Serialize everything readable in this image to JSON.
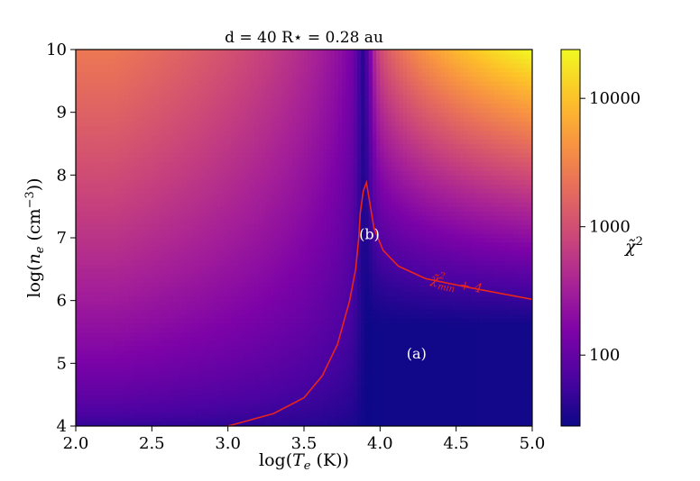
{
  "chart_data": {
    "type": "heatmap",
    "title": "d = 40 R⋆ = 0.28 au",
    "xlabel": "log(T_e (K))",
    "ylabel": "log(n_e (cm⁻³))",
    "xlim": [
      2.0,
      5.0
    ],
    "ylim": [
      4,
      10
    ],
    "x_ticks": [
      "2.0",
      "2.5",
      "3.0",
      "3.5",
      "4.0",
      "4.5",
      "5.0"
    ],
    "y_ticks": [
      "4",
      "5",
      "6",
      "7",
      "8",
      "9",
      "10"
    ],
    "colormap": "plasma",
    "colorbar": {
      "label": "χ̃²",
      "scale": "log",
      "range": [
        28,
        24000
      ],
      "tick_labels": [
        "100",
        "1000",
        "10000"
      ],
      "tick_values": [
        100,
        1000,
        10000
      ]
    },
    "corner_values": {
      "top_left": 2500,
      "top_right": 24000,
      "bottom_left": 45,
      "bottom_right": 30,
      "minimum_valley_x": 3.9
    },
    "contour": {
      "label": "χ̃²_min + 4",
      "color": "#e8251a",
      "points": [
        [
          3.0,
          4.0
        ],
        [
          3.3,
          4.2
        ],
        [
          3.5,
          4.45
        ],
        [
          3.62,
          4.8
        ],
        [
          3.72,
          5.3
        ],
        [
          3.8,
          6.0
        ],
        [
          3.84,
          6.5
        ],
        [
          3.86,
          7.0
        ],
        [
          3.87,
          7.4
        ],
        [
          3.89,
          7.75
        ],
        [
          3.91,
          7.88
        ],
        [
          3.93,
          7.6
        ],
        [
          3.96,
          7.15
        ],
        [
          4.02,
          6.8
        ],
        [
          4.12,
          6.55
        ],
        [
          4.3,
          6.35
        ],
        [
          4.6,
          6.2
        ],
        [
          5.0,
          6.02
        ]
      ]
    },
    "annotations": [
      {
        "text": "(a)",
        "x": 4.24,
        "y": 5.15
      },
      {
        "text": "(b)",
        "x": 3.93,
        "y": 7.05
      }
    ]
  }
}
